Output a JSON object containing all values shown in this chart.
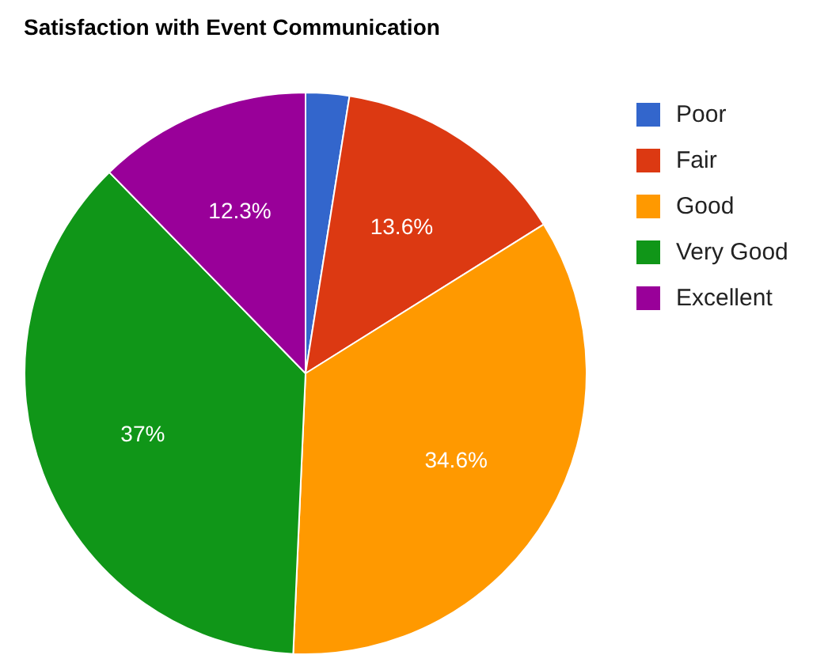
{
  "chart_data": {
    "type": "pie",
    "title": "Satisfaction with Event Communication",
    "categories": [
      "Poor",
      "Fair",
      "Good",
      "Very Good",
      "Excellent"
    ],
    "values": [
      2.5,
      13.6,
      34.6,
      37,
      12.3
    ],
    "value_labels": [
      null,
      "13.6%",
      "34.6%",
      "37%",
      "12.3%"
    ],
    "colors": [
      "#3366cc",
      "#dc3912",
      "#ff9900",
      "#109618",
      "#990099"
    ],
    "legend": "top right"
  }
}
